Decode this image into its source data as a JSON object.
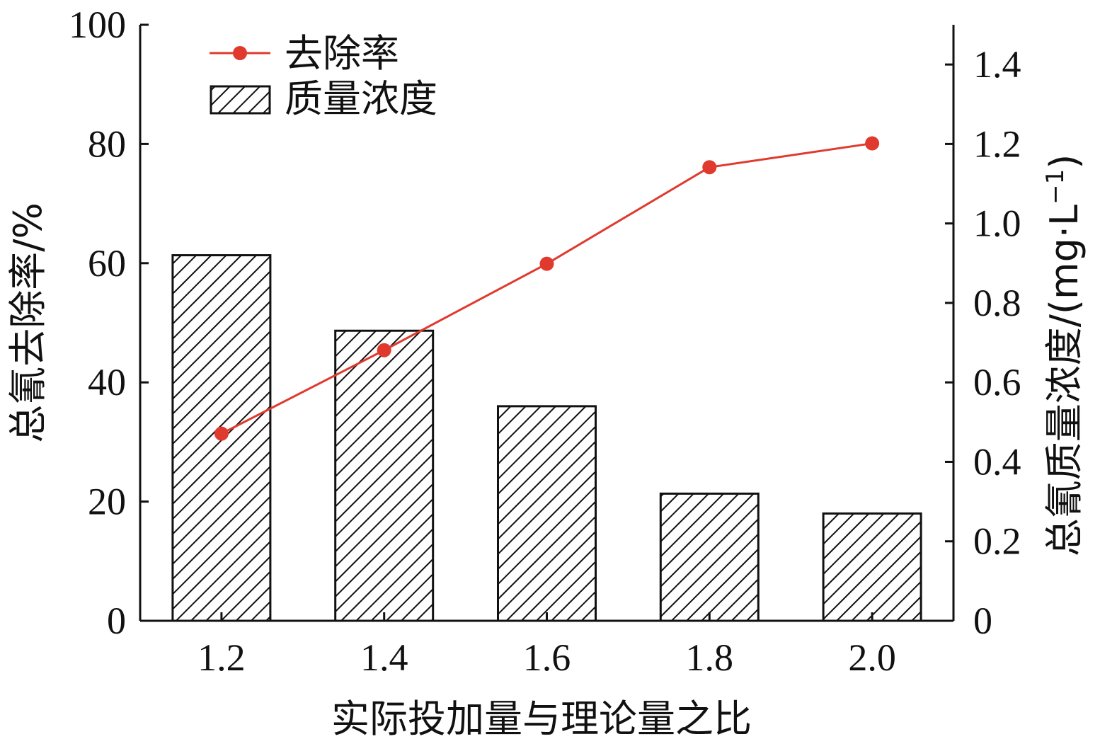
{
  "chart_data": {
    "type": "bar",
    "categories": [
      "1.2",
      "1.4",
      "1.6",
      "1.8",
      "2.0"
    ],
    "xlabel": "实际投加量与理论量之比",
    "y_left": {
      "label": "总氰去除率/%",
      "ticks": [
        "0",
        "20",
        "40",
        "60",
        "80",
        "100"
      ],
      "range": [
        0,
        100
      ]
    },
    "y_right": {
      "label": "总氰质量浓度/(mg·L",
      "label_sup": "−1",
      "label_end": ")",
      "ticks": [
        "0",
        "0.2",
        "0.4",
        "0.6",
        "0.8",
        "1.0",
        "1.2",
        "1.4"
      ],
      "range": [
        0,
        1.5
      ]
    },
    "series": [
      {
        "name": "去除率",
        "kind": "line",
        "axis": "left",
        "color": "#e03a2e",
        "values": [
          31.4,
          45.4,
          59.9,
          76.1,
          80.1
        ]
      },
      {
        "name": "质量浓度",
        "kind": "bar",
        "axis": "right",
        "pattern": "diagonal-hatch",
        "values": [
          0.92,
          0.73,
          0.54,
          0.32,
          0.27
        ]
      }
    ],
    "legend_position": "top-left",
    "grid": false
  }
}
